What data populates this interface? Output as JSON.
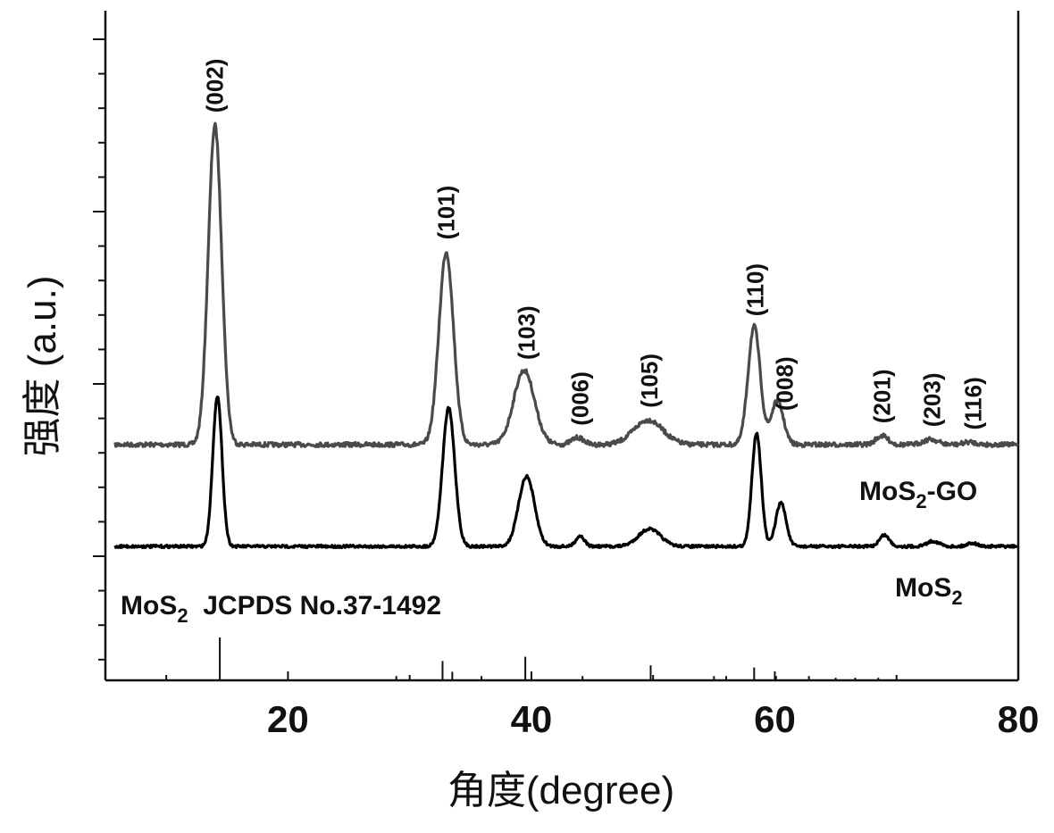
{
  "chart_data": {
    "type": "line",
    "xlabel": "角度(degree)",
    "ylabel": "强度 (a.u.)",
    "xlim": [
      5,
      80
    ],
    "xticks": [
      "20",
      "40",
      "60",
      "80"
    ],
    "series": [
      {
        "name": "MoS2-GO",
        "color": "#4a4a4a",
        "baseline": 1.0,
        "peaks": [
          {
            "x": 14.0,
            "height": 3.65,
            "width": 0.55
          },
          {
            "x": 33.0,
            "height": 2.2,
            "width": 0.6
          },
          {
            "x": 39.4,
            "height": 0.85,
            "width": 0.85
          },
          {
            "x": 43.8,
            "height": 0.08,
            "width": 0.5
          },
          {
            "x": 49.6,
            "height": 0.28,
            "width": 1.2
          },
          {
            "x": 58.3,
            "height": 1.35,
            "width": 0.5
          },
          {
            "x": 60.2,
            "height": 0.5,
            "width": 0.5
          },
          {
            "x": 68.8,
            "height": 0.1,
            "width": 0.5
          },
          {
            "x": 72.8,
            "height": 0.06,
            "width": 0.6
          },
          {
            "x": 76.0,
            "height": 0.03,
            "width": 0.5
          }
        ]
      },
      {
        "name": "MoS2",
        "color": "#000000",
        "baseline": 0.0,
        "peaks": [
          {
            "x": 14.2,
            "height": 1.72,
            "width": 0.38
          },
          {
            "x": 33.2,
            "height": 1.58,
            "width": 0.5
          },
          {
            "x": 39.6,
            "height": 0.8,
            "width": 0.65
          },
          {
            "x": 44.0,
            "height": 0.12,
            "width": 0.35
          },
          {
            "x": 49.7,
            "height": 0.2,
            "width": 0.9
          },
          {
            "x": 58.5,
            "height": 1.3,
            "width": 0.38
          },
          {
            "x": 60.5,
            "height": 0.5,
            "width": 0.42
          },
          {
            "x": 69.0,
            "height": 0.13,
            "width": 0.4
          },
          {
            "x": 73.0,
            "height": 0.06,
            "width": 0.5
          },
          {
            "x": 76.2,
            "height": 0.04,
            "width": 0.4
          }
        ]
      }
    ],
    "reference": {
      "label": "MoS2  JCPDS No.37-1492",
      "lines": [
        {
          "x": 14.4,
          "height": 1.0
        },
        {
          "x": 28.9,
          "height": 0.1
        },
        {
          "x": 32.7,
          "height": 0.45
        },
        {
          "x": 33.5,
          "height": 0.2
        },
        {
          "x": 35.9,
          "height": 0.1
        },
        {
          "x": 39.5,
          "height": 0.55
        },
        {
          "x": 44.2,
          "height": 0.1
        },
        {
          "x": 49.8,
          "height": 0.35
        },
        {
          "x": 55.0,
          "height": 0.1
        },
        {
          "x": 56.0,
          "height": 0.1
        },
        {
          "x": 58.3,
          "height": 0.3
        },
        {
          "x": 60.1,
          "height": 0.1
        },
        {
          "x": 62.8,
          "height": 0.1
        },
        {
          "x": 65.0,
          "height": 0.06
        },
        {
          "x": 66.6,
          "height": 0.06
        },
        {
          "x": 68.5,
          "height": 0.06
        }
      ]
    },
    "annotations": [
      {
        "text": "(002)",
        "x": 14.0
      },
      {
        "text": "(101)",
        "x": 33.0
      },
      {
        "text": "(103)",
        "x": 39.6
      },
      {
        "text": "(006)",
        "x": 44.0
      },
      {
        "text": "(105)",
        "x": 49.7
      },
      {
        "text": "(110)",
        "x": 58.4
      },
      {
        "text": "(008)",
        "x": 60.8
      },
      {
        "text": "(201)",
        "x": 68.8
      },
      {
        "text": "(203)",
        "x": 72.9
      },
      {
        "text": "(116)",
        "x": 76.3
      }
    ],
    "series_labels": {
      "mos2_go": {
        "main": "MoS",
        "sub": "2",
        "rest": "-GO"
      },
      "mos2": {
        "main": "MoS",
        "sub": "2",
        "rest": ""
      }
    },
    "reference_label": {
      "main": "MoS",
      "sub": "2",
      "rest": "  JCPDS No.37-1492"
    },
    "grid": false,
    "legend": "none"
  }
}
